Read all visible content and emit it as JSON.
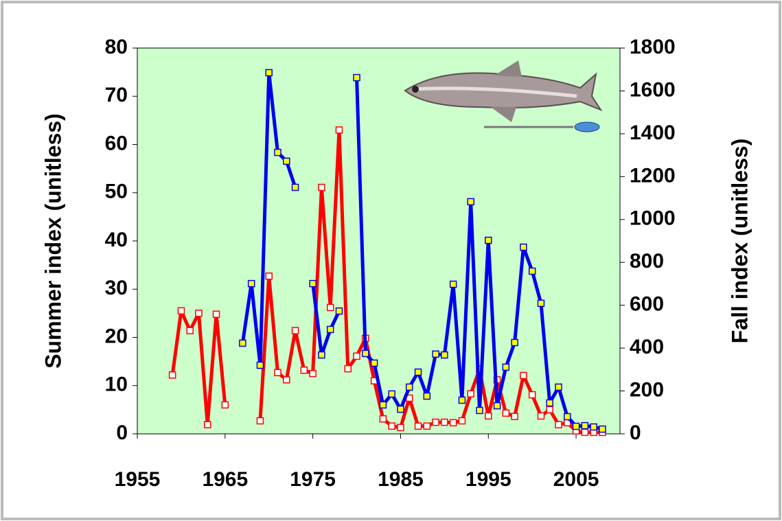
{
  "chart_data": {
    "type": "line",
    "y_label": "Summer index (unitless)",
    "y2_label": "Fall index (unitless)",
    "x": [
      1959,
      1960,
      1961,
      1962,
      1963,
      1964,
      1965,
      1966,
      1967,
      1968,
      1969,
      1970,
      1971,
      1972,
      1973,
      1974,
      1975,
      1976,
      1977,
      1978,
      1979,
      1980,
      1981,
      1982,
      1983,
      1984,
      1985,
      1986,
      1987,
      1988,
      1989,
      1990,
      1991,
      1992,
      1993,
      1994,
      1995,
      1996,
      1997,
      1998,
      1999,
      2000,
      2001,
      2002,
      2003,
      2004,
      2005,
      2006,
      2007,
      2008
    ],
    "series": [
      {
        "color": "#ff0000",
        "marker_fill": "#ffffff",
        "axis": "y",
        "values": [
          12.2,
          25.5,
          21.4,
          25,
          1.9,
          24.8,
          6,
          null,
          null,
          null,
          2.7,
          32.7,
          12.7,
          11.2,
          21.4,
          13.2,
          12.5,
          51.1,
          26.2,
          63,
          13.5,
          16.1,
          19.8,
          11,
          3.1,
          1.6,
          1.3,
          7.4,
          1.6,
          1.6,
          2.4,
          2.4,
          2.3,
          2.7,
          8.3,
          13.4,
          3.7,
          11.2,
          4.3,
          3.6,
          12.1,
          8.1,
          3.7,
          5,
          1.9,
          2.3,
          0.6,
          0.3,
          0.3,
          0.3
        ]
      },
      {
        "color": "#0000ee",
        "marker_fill": "#ffff00",
        "axis": "y2",
        "values": [
          null,
          null,
          null,
          null,
          null,
          null,
          null,
          null,
          423,
          701,
          320,
          1685,
          1313,
          1272,
          1150,
          null,
          701,
          368,
          487,
          573,
          null,
          1662,
          375,
          330,
          135,
          186,
          115,
          218,
          288,
          176,
          372,
          368,
          698,
          157,
          1083,
          109,
          903,
          131,
          311,
          426,
          871,
          759,
          609,
          144,
          218,
          80,
          35,
          38,
          32,
          22
        ]
      }
    ],
    "xlim": [
      1955,
      2010
    ],
    "xticks": [
      1955,
      1965,
      1975,
      1985,
      1995,
      2005
    ],
    "ylim": [
      0,
      80
    ],
    "yticks": [
      0,
      10,
      20,
      30,
      40,
      50,
      60,
      70,
      80
    ],
    "y2lim": [
      0,
      1800
    ],
    "y2ticks": [
      0,
      200,
      400,
      600,
      800,
      1000,
      1200,
      1400,
      1600,
      1800
    ],
    "plot_background": "#ccffcc"
  }
}
